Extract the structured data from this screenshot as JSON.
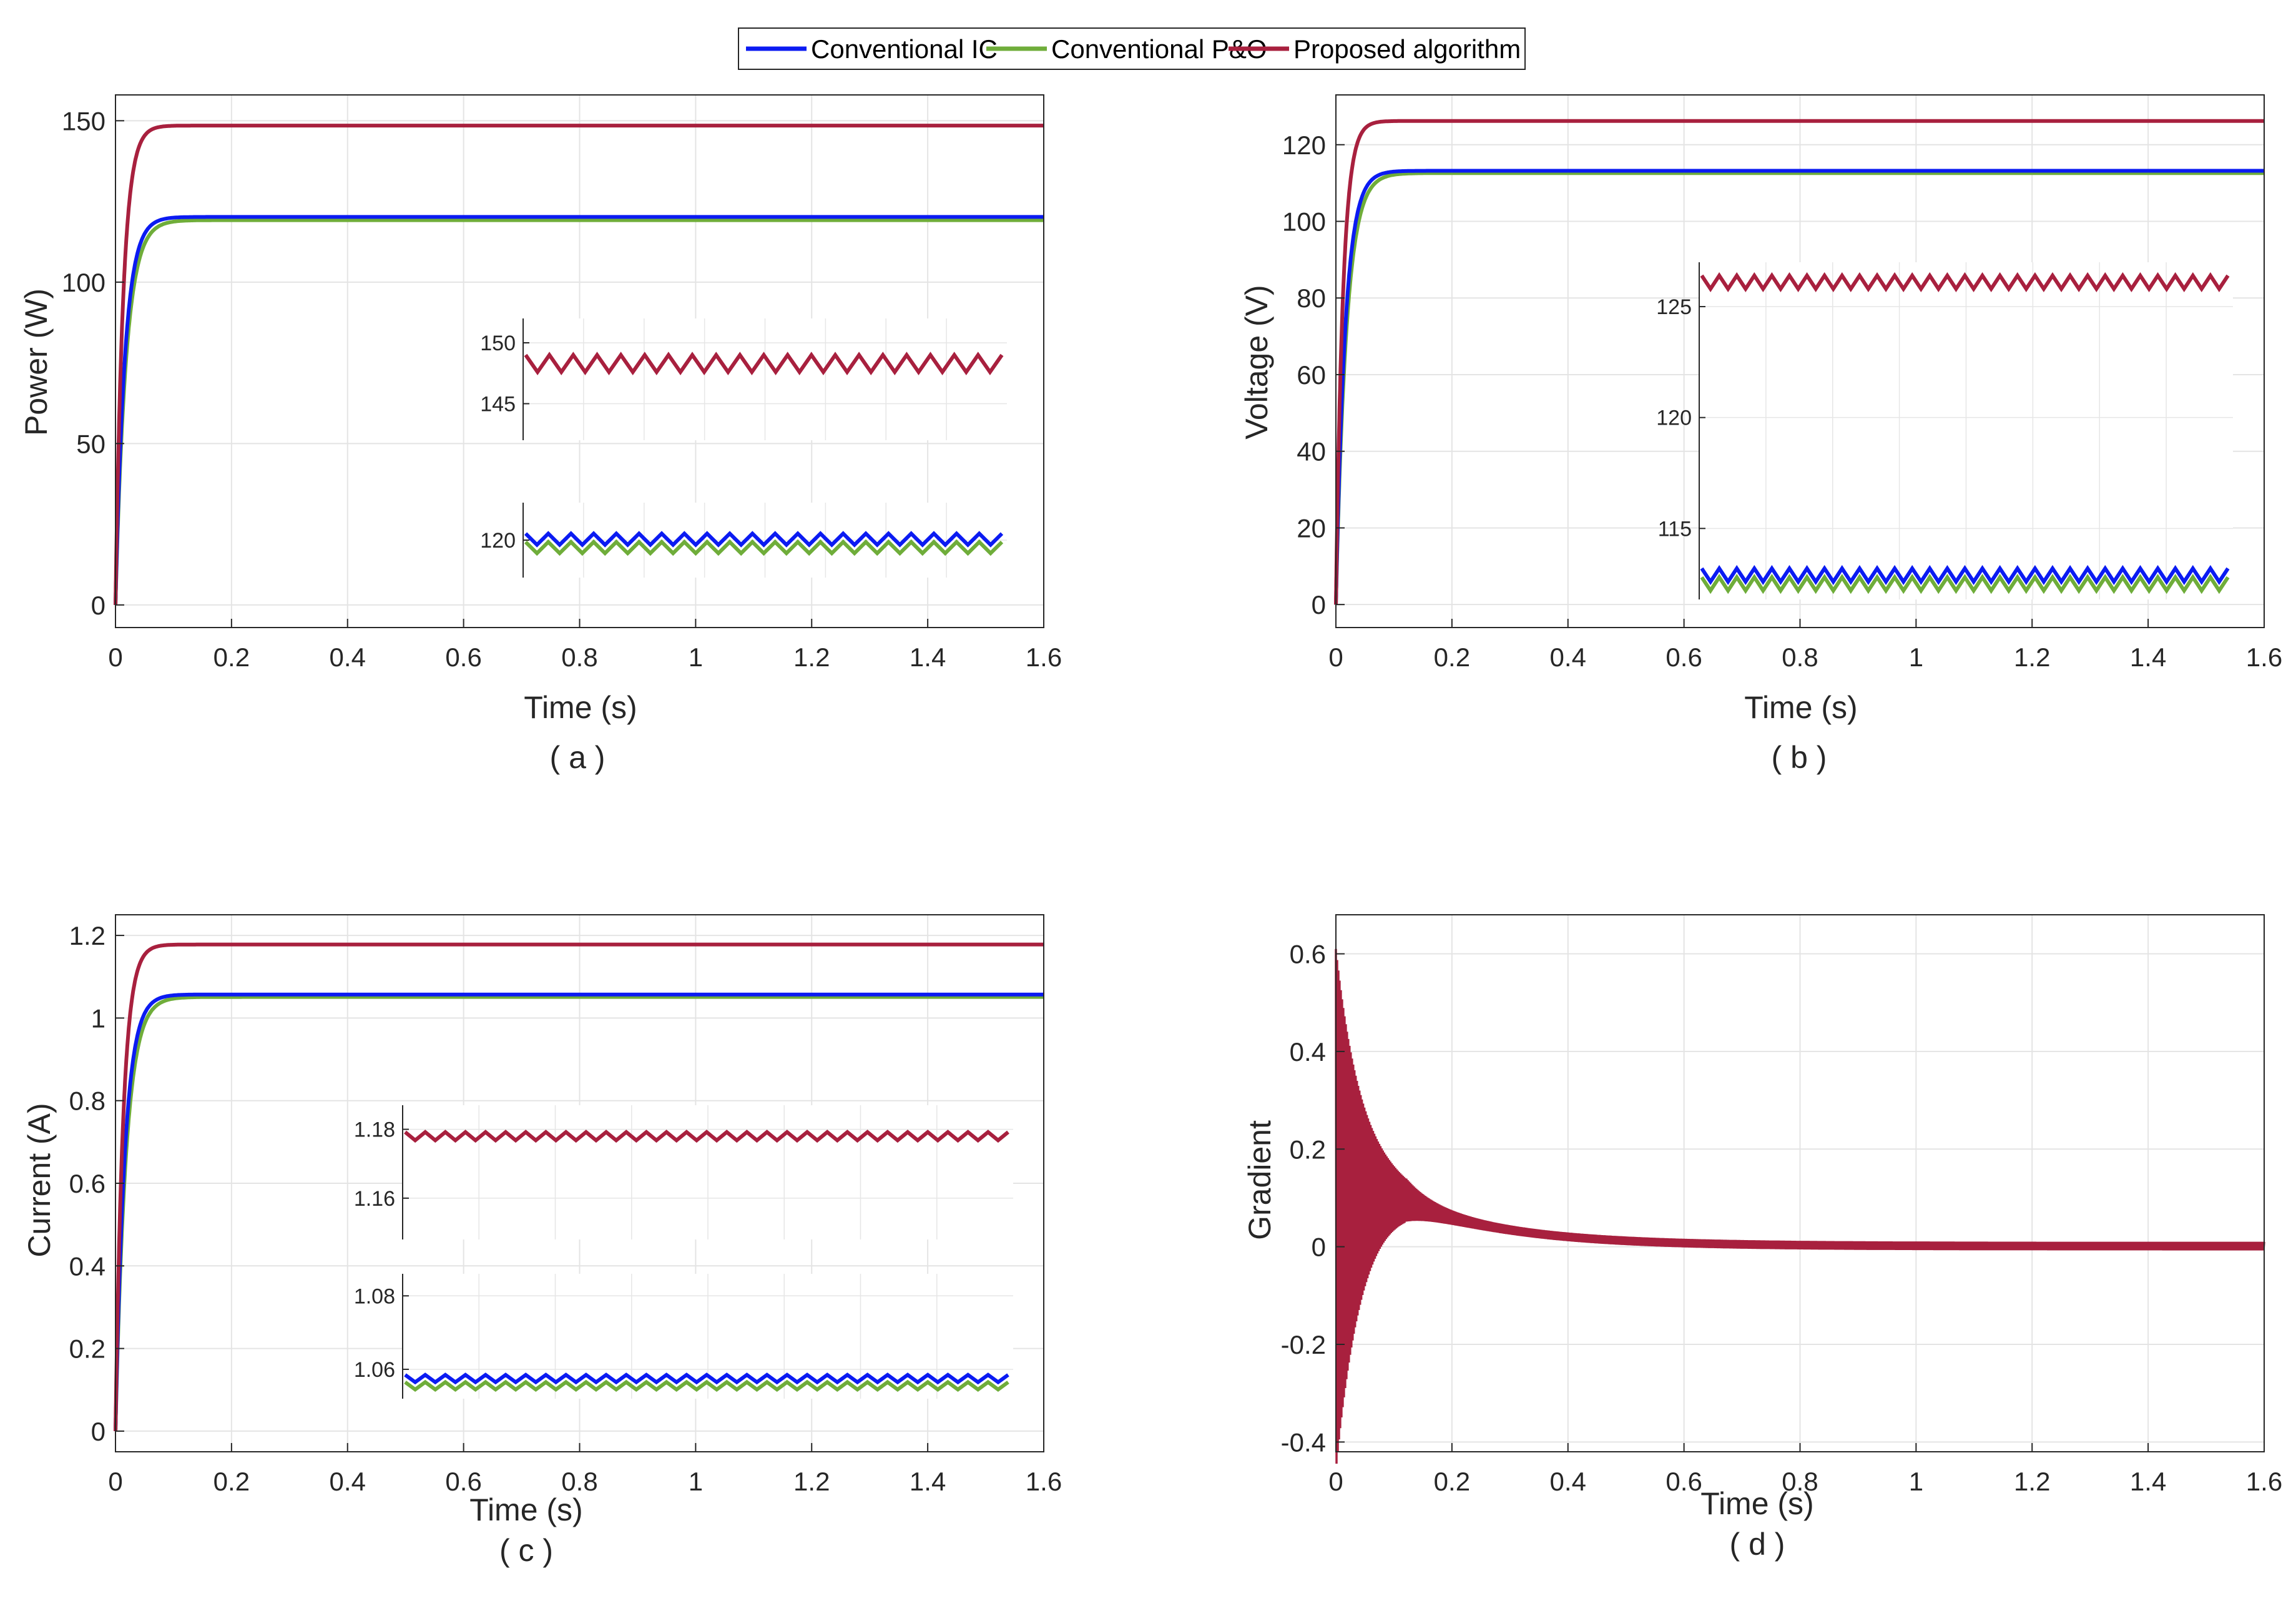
{
  "legend": {
    "entries": [
      {
        "label": "Conventional IC",
        "color": "#0b1bf2"
      },
      {
        "label": "Conventional P&O",
        "color": "#6fad3a"
      },
      {
        "label": "Proposed algorithm",
        "color": "#a8203e"
      }
    ]
  },
  "chart_data": [
    {
      "id": "a",
      "type": "line",
      "caption": "( a )",
      "xlabel": "Time (s)",
      "ylabel": "Power (W)",
      "xlim": [
        0,
        1.6
      ],
      "ylim": [
        -7,
        158
      ],
      "xticks": [
        "0",
        "0.2",
        "0.4",
        "0.6",
        "0.8",
        "1",
        "1.2",
        "1.4",
        "1.6"
      ],
      "yticks": [
        "0",
        "50",
        "100",
        "150"
      ],
      "series": [
        {
          "name": "Conventional IC",
          "steady": 120.2,
          "tau": 0.016
        },
        {
          "name": "Conventional P&O",
          "steady": 119.2,
          "tau": 0.018
        },
        {
          "name": "Proposed algorithm",
          "steady": 148.5,
          "tau": 0.013
        }
      ],
      "insets": [
        {
          "ylim": [
            142,
            152
          ],
          "yticks": [
            "145",
            "150"
          ],
          "series": [
            {
              "name": "Proposed algorithm",
              "center": 148.3,
              "amp": 0.7,
              "cycles": 20
            }
          ]
        },
        {
          "ylim": [
            116,
            124
          ],
          "yticks": [
            "120"
          ],
          "series": [
            {
              "name": "Conventional IC",
              "center": 120.1,
              "amp": 0.6,
              "cycles": 21
            },
            {
              "name": "Conventional P&O",
              "center": 119.2,
              "amp": 0.6,
              "cycles": 21
            }
          ]
        }
      ]
    },
    {
      "id": "b",
      "type": "line",
      "caption": "( b )",
      "xlabel": "Time (s)",
      "ylabel": "Voltage (V)",
      "xlim": [
        0,
        1.6
      ],
      "ylim": [
        -6,
        133
      ],
      "xticks": [
        "0",
        "0.2",
        "0.4",
        "0.6",
        "0.8",
        "1",
        "1.2",
        "1.4",
        "1.6"
      ],
      "yticks": [
        "0",
        "20",
        "40",
        "60",
        "80",
        "100",
        "120"
      ],
      "series": [
        {
          "name": "Conventional IC",
          "steady": 113.2,
          "tau": 0.016
        },
        {
          "name": "Conventional P&O",
          "steady": 112.6,
          "tau": 0.018
        },
        {
          "name": "Proposed algorithm",
          "steady": 126.2,
          "tau": 0.012
        }
      ],
      "insets": [
        {
          "ylim": [
            111.8,
            127
          ],
          "yticks": [
            "115",
            "120",
            "125"
          ],
          "series": [
            {
              "name": "Proposed algorithm",
              "center": 126.1,
              "amp": 0.3,
              "cycles": 30
            },
            {
              "name": "Conventional IC",
              "center": 112.9,
              "amp": 0.3,
              "cycles": 30
            },
            {
              "name": "Conventional P&O",
              "center": 112.5,
              "amp": 0.3,
              "cycles": 30
            }
          ]
        }
      ]
    },
    {
      "id": "c",
      "type": "line",
      "caption": "( c )",
      "xlabel": "Time (s)",
      "ylabel": "Current (A)",
      "xlim": [
        0,
        1.6
      ],
      "ylim": [
        -0.05,
        1.25
      ],
      "xticks": [
        "0",
        "0.2",
        "0.4",
        "0.6",
        "0.8",
        "1",
        "1.2",
        "1.4",
        "1.6"
      ],
      "yticks": [
        "0",
        "0.2",
        "0.4",
        "0.6",
        "0.8",
        "1",
        "1.2"
      ],
      "series": [
        {
          "name": "Conventional IC",
          "steady": 1.057,
          "tau": 0.016
        },
        {
          "name": "Conventional P&O",
          "steady": 1.051,
          "tau": 0.018
        },
        {
          "name": "Proposed algorithm",
          "steady": 1.178,
          "tau": 0.013
        }
      ],
      "insets": [
        {
          "ylim": [
            1.148,
            1.187
          ],
          "yticks": [
            "1.16",
            "1.18"
          ],
          "series": [
            {
              "name": "Proposed algorithm",
              "center": 1.178,
              "amp": 0.0012,
              "cycles": 30
            }
          ]
        },
        {
          "ylim": [
            1.052,
            1.086
          ],
          "yticks": [
            "1.06",
            "1.08"
          ],
          "series": [
            {
              "name": "Conventional IC",
              "center": 1.0575,
              "amp": 0.001,
              "cycles": 30
            },
            {
              "name": "Conventional P&O",
              "center": 1.0555,
              "amp": 0.001,
              "cycles": 30
            }
          ]
        }
      ]
    },
    {
      "id": "d",
      "type": "line",
      "caption": "( d )",
      "xlabel": "Time (s)",
      "ylabel": "Gradient",
      "xlim": [
        0,
        1.6
      ],
      "ylim": [
        -0.42,
        0.68
      ],
      "xticks": [
        "0",
        "0.2",
        "0.4",
        "0.6",
        "0.8",
        "1",
        "1.2",
        "1.4",
        "1.6"
      ],
      "yticks": [
        "-0.4",
        "-0.2",
        "0",
        "0.2",
        "0.4",
        "0.6"
      ],
      "series": [
        {
          "name": "Proposed algorithm",
          "envelope_start": 0.6,
          "envelope_decay": 0.045,
          "trend_peak": 0.1,
          "trend_decay": 0.18
        }
      ]
    }
  ]
}
